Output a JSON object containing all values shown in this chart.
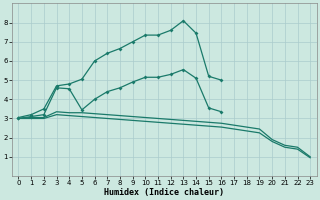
{
  "xlabel": "Humidex (Indice chaleur)",
  "background_color": "#cce8e0",
  "grid_color": "#aacccc",
  "line_color": "#1a7a6a",
  "xlim": [
    -0.5,
    23.5
  ],
  "ylim": [
    0,
    9
  ],
  "x": [
    0,
    1,
    2,
    3,
    4,
    5,
    6,
    7,
    8,
    9,
    10,
    11,
    12,
    13,
    14,
    15,
    16,
    17,
    18,
    19,
    20,
    21,
    22,
    23
  ],
  "curve1": [
    3.05,
    3.2,
    3.5,
    4.7,
    4.8,
    5.05,
    6.0,
    6.4,
    6.65,
    7.0,
    7.35,
    7.35,
    7.6,
    8.1,
    7.45,
    5.2,
    5.0,
    null,
    null,
    null,
    null,
    null,
    null,
    null
  ],
  "curve2": [
    3.0,
    3.1,
    3.2,
    4.6,
    4.55,
    3.45,
    4.0,
    4.4,
    4.6,
    4.9,
    5.15,
    5.15,
    5.3,
    5.55,
    5.1,
    3.55,
    3.35,
    null,
    null,
    null,
    null,
    null,
    null,
    null
  ],
  "curve3_upper": [
    3.0,
    3.05,
    3.05,
    3.35,
    3.3,
    3.3,
    3.25,
    3.2,
    3.15,
    3.1,
    3.05,
    3.0,
    2.95,
    2.9,
    2.85,
    2.8,
    2.75,
    2.65,
    2.55,
    2.45,
    1.9,
    1.6,
    1.5,
    1.0
  ],
  "curve3_lower": [
    3.0,
    3.0,
    3.0,
    3.2,
    3.15,
    3.1,
    3.05,
    3.0,
    2.95,
    2.9,
    2.85,
    2.8,
    2.75,
    2.7,
    2.65,
    2.6,
    2.55,
    2.45,
    2.35,
    2.25,
    1.8,
    1.5,
    1.4,
    0.95
  ],
  "xticks": [
    0,
    1,
    2,
    3,
    4,
    5,
    6,
    7,
    8,
    9,
    10,
    11,
    12,
    13,
    14,
    15,
    16,
    17,
    18,
    19,
    20,
    21,
    22,
    23
  ],
  "yticks": [
    1,
    2,
    3,
    4,
    5,
    6,
    7,
    8
  ]
}
